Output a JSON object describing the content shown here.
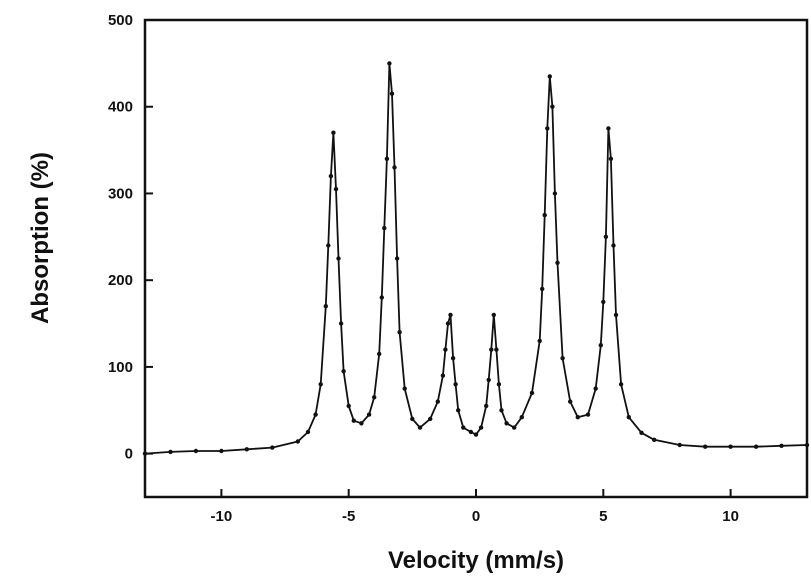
{
  "chart_data": {
    "type": "line",
    "title": "",
    "xlabel": "Velocity (mm/s)",
    "ylabel": "Absorption (%)",
    "xlim": [
      -13,
      13
    ],
    "ylim": [
      -50,
      500
    ],
    "xticks": [
      -10,
      -5,
      0,
      5,
      10
    ],
    "xtick_labels": [
      "-10",
      "-5",
      "0",
      "5",
      "10"
    ],
    "yticks": [
      0,
      100,
      200,
      300,
      400,
      500
    ],
    "ytick_labels": [
      "0",
      "100",
      "200",
      "300",
      "400",
      "500"
    ],
    "grid": false,
    "legend": "none",
    "marker": "dot",
    "colors": {
      "line": "#111111",
      "marker": "#111111",
      "axis": "#111111"
    },
    "peaks": [
      {
        "position": -5.6,
        "height": 370
      },
      {
        "position": -3.4,
        "height": 450
      },
      {
        "position": -1.0,
        "height": 160
      },
      {
        "position": 0.7,
        "height": 160
      },
      {
        "position": 2.9,
        "height": 435
      },
      {
        "position": 5.2,
        "height": 375
      }
    ],
    "series": [
      {
        "x": [
          -13.0,
          -12.0,
          -11.0,
          -10.0,
          -9.0,
          -8.0,
          -7.0,
          -6.6,
          -6.3,
          -6.1,
          -5.9,
          -5.8,
          -5.7,
          -5.6,
          -5.5,
          -5.4,
          -5.3,
          -5.2,
          -5.0,
          -4.8,
          -4.5,
          -4.2,
          -4.0,
          -3.8,
          -3.7,
          -3.6,
          -3.5,
          -3.4,
          -3.3,
          -3.2,
          -3.1,
          -3.0,
          -2.8,
          -2.5,
          -2.2,
          -1.8,
          -1.5,
          -1.3,
          -1.2,
          -1.1,
          -1.0,
          -0.9,
          -0.8,
          -0.7,
          -0.5,
          -0.2,
          0.0,
          0.2,
          0.4,
          0.5,
          0.6,
          0.7,
          0.8,
          0.9,
          1.0,
          1.2,
          1.5,
          1.8,
          2.2,
          2.5,
          2.6,
          2.7,
          2.8,
          2.9,
          3.0,
          3.1,
          3.2,
          3.4,
          3.7,
          4.0,
          4.4,
          4.7,
          4.9,
          5.0,
          5.1,
          5.2,
          5.3,
          5.4,
          5.5,
          5.7,
          6.0,
          6.5,
          7.0,
          8.0,
          9.0,
          10.0,
          11.0,
          12.0,
          13.0
        ],
        "y": [
          0,
          2,
          3,
          3,
          5,
          7,
          14,
          25,
          45,
          80,
          170,
          240,
          320,
          370,
          305,
          225,
          150,
          95,
          55,
          38,
          35,
          45,
          65,
          115,
          180,
          260,
          340,
          450,
          415,
          330,
          225,
          140,
          75,
          40,
          30,
          40,
          60,
          90,
          120,
          150,
          160,
          110,
          80,
          50,
          30,
          25,
          22,
          30,
          55,
          85,
          120,
          160,
          120,
          80,
          50,
          35,
          30,
          42,
          70,
          130,
          190,
          275,
          375,
          435,
          400,
          300,
          220,
          110,
          60,
          42,
          45,
          75,
          125,
          175,
          250,
          375,
          340,
          240,
          160,
          80,
          42,
          24,
          16,
          10,
          8,
          8,
          8,
          9,
          10
        ]
      }
    ]
  }
}
